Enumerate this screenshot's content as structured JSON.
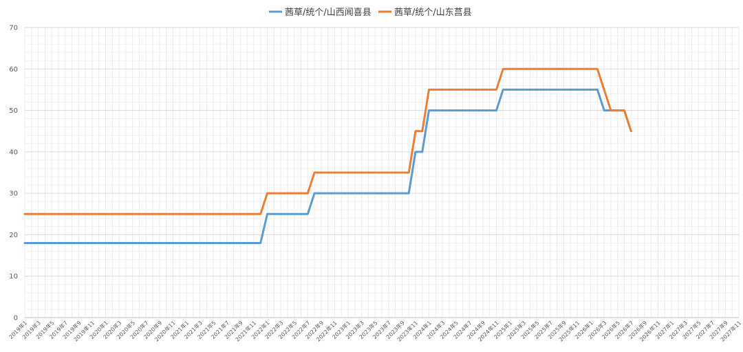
{
  "chart_data": {
    "type": "line",
    "title": "",
    "xlabel": "",
    "ylabel": "",
    "ylim": [
      0,
      70
    ],
    "yticks": [
      0,
      10,
      20,
      30,
      40,
      50,
      60,
      70
    ],
    "grid": true,
    "legend_position": "top-center",
    "categories": [
      "2019年1",
      "2019年3",
      "2019年5",
      "2019年7",
      "2019年9",
      "2019年11",
      "2020年1",
      "2020年3",
      "2020年5",
      "2020年7",
      "2020年9",
      "2020年11",
      "2021年1",
      "2021年3",
      "2021年5",
      "2021年7",
      "2021年9",
      "2021年11",
      "2022年1",
      "2022年3",
      "2022年5",
      "2022年7",
      "2022年9",
      "2022年11",
      "2023年1",
      "2023年3",
      "2023年5",
      "2023年7",
      "2023年9",
      "2023年11",
      "2024年1",
      "2024年3",
      "2024年5",
      "2024年7",
      "2024年9",
      "2024年11",
      "2025年1",
      "2025年3",
      "2025年5",
      "2025年7",
      "2025年9",
      "2025年11",
      "2026年1",
      "2026年3",
      "2026年5",
      "2026年7",
      "2026年9",
      "2026年11",
      "2027年1",
      "2027年3",
      "2027年5",
      "2027年7",
      "2027年9",
      "2027年11"
    ],
    "series": [
      {
        "name": "茜草/统个/山西闻喜县",
        "color": "#5B9BD5",
        "points": [
          [
            0,
            18
          ],
          [
            35.0,
            18
          ],
          [
            36.0,
            25
          ],
          [
            42.0,
            25
          ],
          [
            43.0,
            30
          ],
          [
            57.0,
            30
          ],
          [
            58.0,
            40
          ],
          [
            59.0,
            40
          ],
          [
            60.0,
            50
          ],
          [
            70.0,
            50
          ],
          [
            71.0,
            55
          ],
          [
            85.0,
            55
          ],
          [
            86.0,
            50
          ],
          [
            89.0,
            50
          ],
          [
            90.0,
            45
          ]
        ]
      },
      {
        "name": "茜草/统个/山东莒县",
        "color": "#ED7D31",
        "points": [
          [
            0,
            25
          ],
          [
            35.0,
            25
          ],
          [
            36.0,
            30
          ],
          [
            42.0,
            30
          ],
          [
            43.0,
            35
          ],
          [
            57.0,
            35
          ],
          [
            58.0,
            45
          ],
          [
            59.0,
            45
          ],
          [
            60.0,
            55
          ],
          [
            70.0,
            55
          ],
          [
            71.0,
            60
          ],
          [
            85.0,
            60
          ],
          [
            87.0,
            50
          ],
          [
            89.0,
            50
          ],
          [
            90.0,
            45
          ]
        ]
      }
    ]
  }
}
